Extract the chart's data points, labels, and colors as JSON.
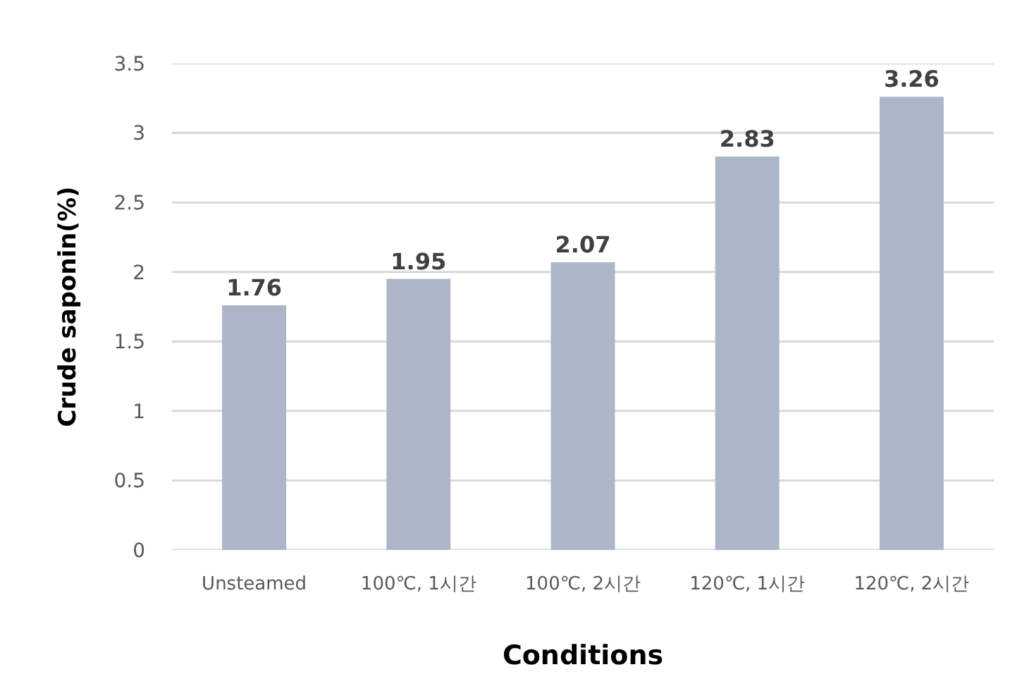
{
  "chart_data": {
    "type": "bar",
    "xlabel": "Conditions",
    "ylabel": "Crude saponin(%)",
    "categories": [
      "Unsteamed",
      "100℃, 1시간",
      "100℃, 2시간",
      "120℃, 1시간",
      "120℃, 2시간"
    ],
    "values": [
      1.76,
      1.95,
      2.07,
      2.83,
      3.26
    ],
    "color": "#adb6c9",
    "ylim": [
      0,
      3.5
    ],
    "yticks": [
      0,
      0.5,
      1,
      1.5,
      2,
      2.5,
      3,
      3.5
    ],
    "grid": "y",
    "data_labels": true
  }
}
